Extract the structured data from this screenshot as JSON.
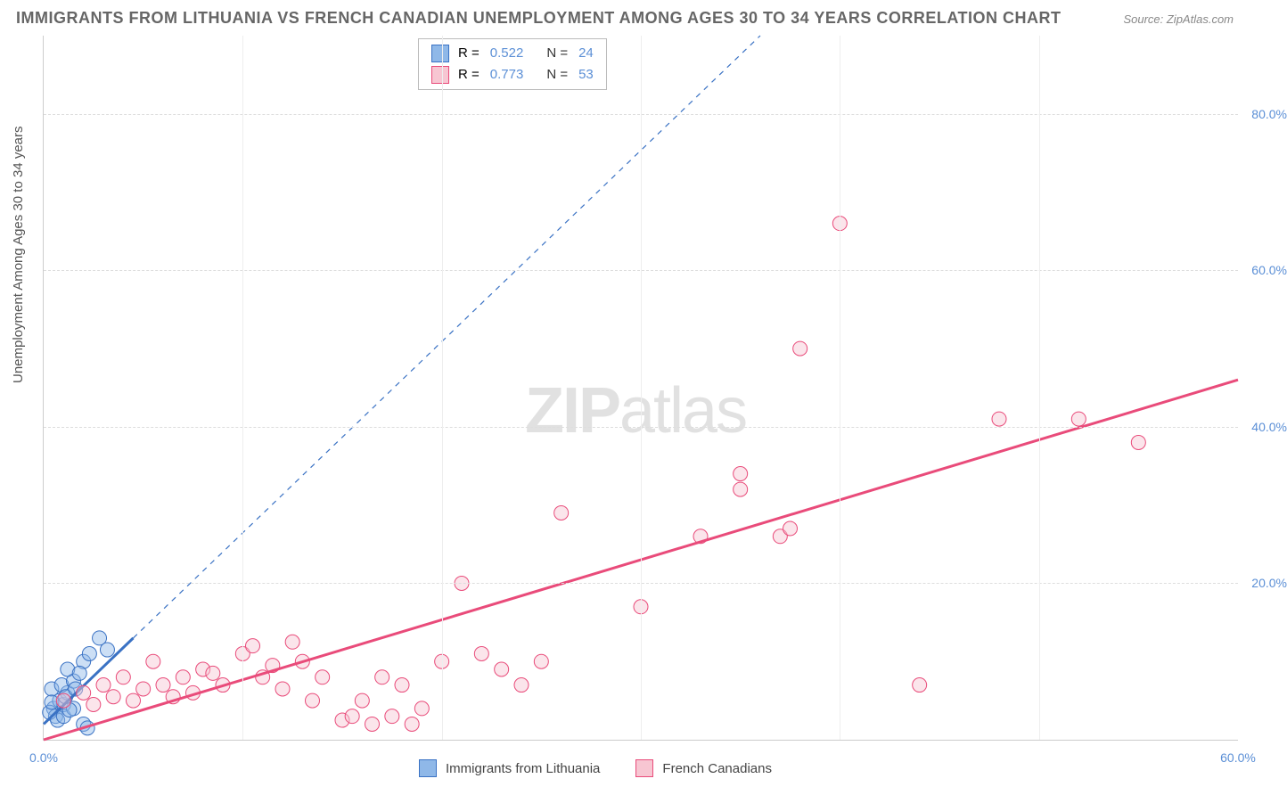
{
  "title": "IMMIGRANTS FROM LITHUANIA VS FRENCH CANADIAN UNEMPLOYMENT AMONG AGES 30 TO 34 YEARS CORRELATION CHART",
  "source": "Source: ZipAtlas.com",
  "ylabel": "Unemployment Among Ages 30 to 34 years",
  "watermark_bold": "ZIP",
  "watermark_light": "atlas",
  "chart": {
    "type": "scatter",
    "xlim": [
      0,
      60
    ],
    "ylim": [
      0,
      90
    ],
    "xticks": [
      {
        "v": 0,
        "l": "0.0%"
      },
      {
        "v": 60,
        "l": "60.0%"
      }
    ],
    "yticks": [
      {
        "v": 20,
        "l": "20.0%"
      },
      {
        "v": 40,
        "l": "40.0%"
      },
      {
        "v": 60,
        "l": "60.0%"
      },
      {
        "v": 80,
        "l": "80.0%"
      }
    ],
    "grid_v_at": [
      10,
      20,
      30,
      40,
      50
    ],
    "background_color": "#ffffff",
    "grid_color": "#dddddd",
    "marker_radius": 8,
    "marker_opacity": 0.45,
    "series": [
      {
        "name": "Immigrants from Lithuania",
        "fill": "#8fb8e8",
        "stroke": "#3a72c4",
        "R": "0.522",
        "N": "24",
        "trend": {
          "x1": 0,
          "y1": 2,
          "x2": 4.5,
          "y2": 13,
          "dash": "none",
          "width": 3,
          "extend_dash": {
            "x2": 36,
            "y2": 90
          }
        },
        "points": [
          [
            0.5,
            4
          ],
          [
            0.6,
            3
          ],
          [
            0.8,
            5
          ],
          [
            1.0,
            4.5
          ],
          [
            1.2,
            6
          ],
          [
            0.4,
            6.5
          ],
          [
            0.9,
            7
          ],
          [
            1.5,
            7.5
          ],
          [
            1.2,
            9
          ],
          [
            2.0,
            10
          ],
          [
            2.3,
            11
          ],
          [
            1.8,
            8.5
          ],
          [
            0.3,
            3.5
          ],
          [
            0.7,
            2.5
          ],
          [
            1.0,
            3
          ],
          [
            1.5,
            4
          ],
          [
            2.8,
            13
          ],
          [
            3.2,
            11.5
          ],
          [
            1.1,
            5.5
          ],
          [
            1.6,
            6.5
          ],
          [
            2.0,
            2
          ],
          [
            2.2,
            1.5
          ],
          [
            0.4,
            4.8
          ],
          [
            1.3,
            3.8
          ]
        ]
      },
      {
        "name": "French Canadians",
        "fill": "#f7c6d2",
        "stroke": "#e94b7a",
        "R": "0.773",
        "N": "53",
        "trend": {
          "x1": 0,
          "y1": 0,
          "x2": 60,
          "y2": 46,
          "dash": "none",
          "width": 3
        },
        "points": [
          [
            1,
            5
          ],
          [
            2,
            6
          ],
          [
            3,
            7
          ],
          [
            3.5,
            5.5
          ],
          [
            4,
            8
          ],
          [
            5,
            6.5
          ],
          [
            5.5,
            10
          ],
          [
            6,
            7
          ],
          [
            7,
            8
          ],
          [
            7.5,
            6
          ],
          [
            8,
            9
          ],
          [
            9,
            7
          ],
          [
            10,
            11
          ],
          [
            10.5,
            12
          ],
          [
            11,
            8
          ],
          [
            12,
            6.5
          ],
          [
            12.5,
            12.5
          ],
          [
            13,
            10
          ],
          [
            13.5,
            5
          ],
          [
            14,
            8
          ],
          [
            15,
            2.5
          ],
          [
            15.5,
            3
          ],
          [
            16,
            5
          ],
          [
            16.5,
            2
          ],
          [
            17,
            8
          ],
          [
            17.5,
            3
          ],
          [
            18,
            7
          ],
          [
            18.5,
            2
          ],
          [
            19,
            4
          ],
          [
            20,
            10
          ],
          [
            21,
            20
          ],
          [
            22,
            11
          ],
          [
            23,
            9
          ],
          [
            24,
            7
          ],
          [
            25,
            10
          ],
          [
            26,
            29
          ],
          [
            30,
            17
          ],
          [
            33,
            26
          ],
          [
            35,
            34
          ],
          [
            35,
            32
          ],
          [
            37,
            26
          ],
          [
            37.5,
            27
          ],
          [
            38,
            50
          ],
          [
            40,
            66
          ],
          [
            44,
            7
          ],
          [
            48,
            41
          ],
          [
            52,
            41
          ],
          [
            55,
            38
          ],
          [
            2.5,
            4.5
          ],
          [
            4.5,
            5
          ],
          [
            6.5,
            5.5
          ],
          [
            8.5,
            8.5
          ],
          [
            11.5,
            9.5
          ]
        ]
      }
    ]
  },
  "legend_top_label_R": "R =",
  "legend_top_label_N": "N ="
}
